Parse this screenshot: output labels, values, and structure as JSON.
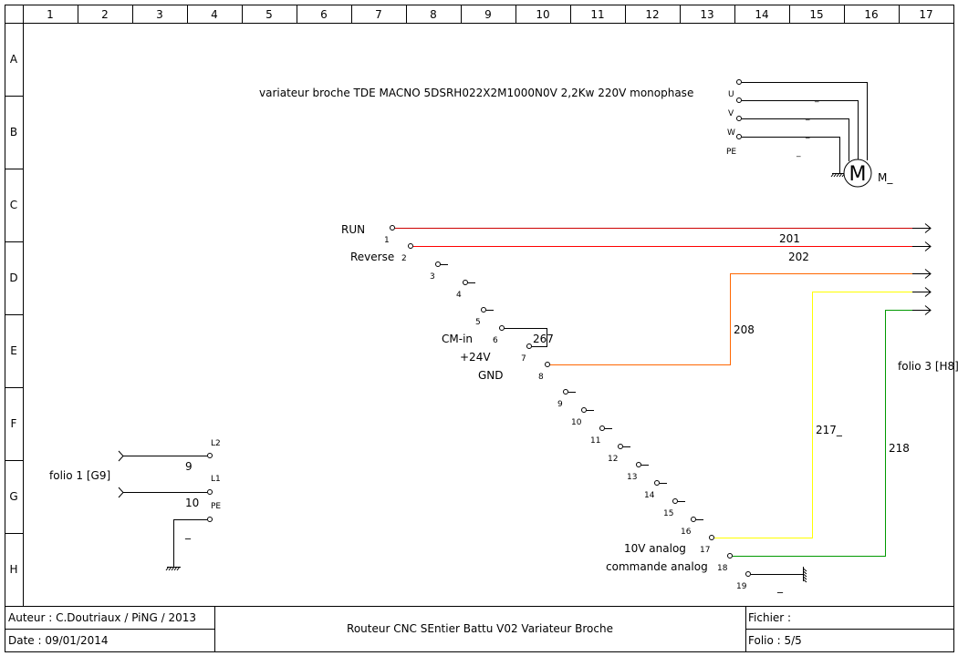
{
  "frame": {
    "columns": [
      "1",
      "2",
      "3",
      "4",
      "5",
      "6",
      "7",
      "8",
      "9",
      "10",
      "11",
      "12",
      "13",
      "14",
      "15",
      "16",
      "17"
    ],
    "rows": [
      "A",
      "B",
      "C",
      "D",
      "E",
      "F",
      "G",
      "H"
    ]
  },
  "title_block": {
    "author": "Auteur : C.Doutriaux / PiNG / 2013",
    "date": "Date : 09/01/2014",
    "title": "Routeur CNC SEntier Battu V02 Variateur Broche",
    "file": "Fichier :",
    "folio": "Folio : 5/5"
  },
  "drive": {
    "label": "variateur broche TDE MACNO 5DSRH022X2M1000N0V 2,2Kw 220V monophase",
    "terminals": [
      "1",
      "2",
      "3",
      "4",
      "5",
      "6",
      "7",
      "8",
      "9",
      "10",
      "11",
      "12",
      "13",
      "14",
      "15",
      "16",
      "17",
      "18",
      "19"
    ],
    "signal_labels": {
      "run": "RUN",
      "reverse": "Reverse",
      "cm_in": "CM-in",
      "plus24": "+24V",
      "gnd": "GND",
      "analog10v": "10V analog",
      "commande": "commande analog"
    }
  },
  "motor": {
    "symbol": "M",
    "name": "M_",
    "phases": [
      "U",
      "V",
      "W",
      "PE"
    ],
    "dash": "_"
  },
  "wires": {
    "w201": "201",
    "w202": "202",
    "w208": "208",
    "w217": "217_",
    "w218": "218",
    "w267": "267",
    "w19": "_",
    "colors": {
      "run": "#cc0000",
      "reverse": "#ff0000",
      "gnd": "#ff6600",
      "analog10v": "#ffff00",
      "commande": "#009900"
    }
  },
  "supply": {
    "folio_ref": "folio 1 [G9]",
    "l2": "L2",
    "l1": "L1",
    "pe": "PE",
    "w9": "9",
    "w10": "10",
    "pe_wire": "_"
  },
  "out_ref": "folio 3 [H8]"
}
